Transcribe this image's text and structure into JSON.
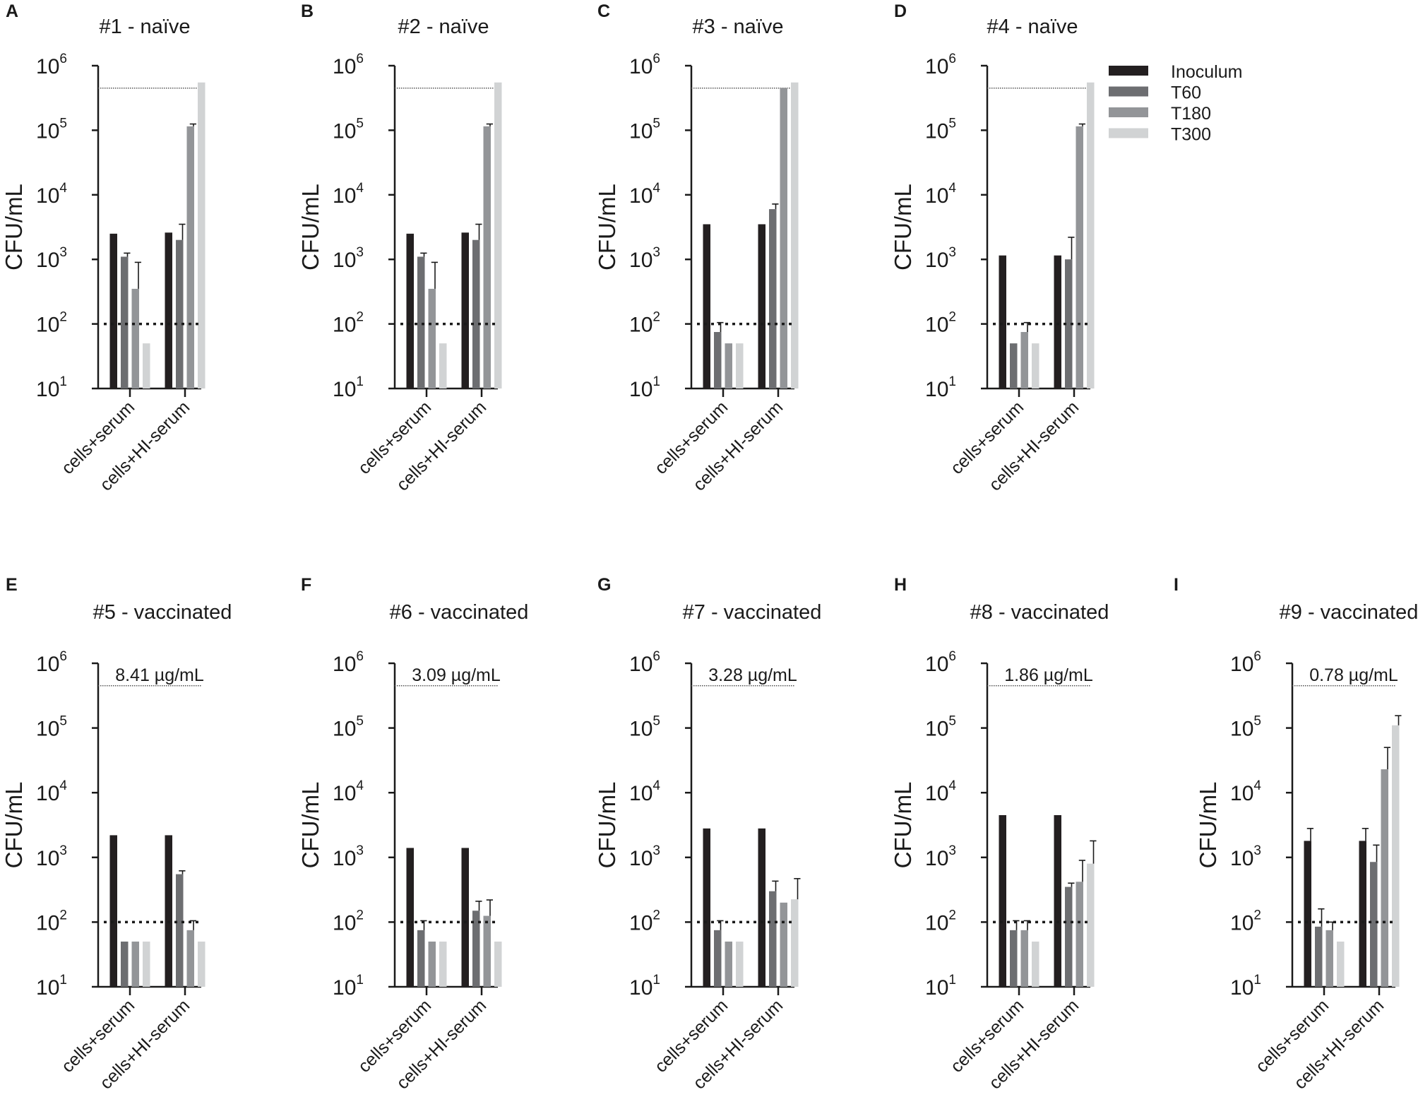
{
  "legend": {
    "entries": [
      "Inoculum",
      "T60",
      "T180",
      "T300"
    ],
    "colors": [
      "#231f20",
      "#6d6e71",
      "#939598",
      "#d1d3d4"
    ]
  },
  "chart_data": [
    {
      "panel": "A",
      "title": "#1 - naïve",
      "type": "bar",
      "scale": "log",
      "ylabel": "CFU/mL",
      "ylim": [
        10,
        1000000
      ],
      "ytick_labels": [
        "10",
        "10",
        "10",
        "10",
        "10",
        "10"
      ],
      "ytick_exponents": [
        "1",
        "2",
        "3",
        "4",
        "5",
        "6"
      ],
      "categories": [
        "cells+serum",
        "cells+HI-serum"
      ],
      "series": [
        {
          "name": "Inoculum",
          "values": [
            2500,
            2600
          ],
          "errors": [
            null,
            null
          ]
        },
        {
          "name": "T60",
          "values": [
            1100,
            2000
          ],
          "errors": [
            1250,
            3500
          ]
        },
        {
          "name": "T180",
          "values": [
            350,
            115000
          ],
          "errors": [
            900,
            125000
          ]
        },
        {
          "name": "T300",
          "values": [
            50,
            550000
          ],
          "errors": [
            null,
            null
          ]
        }
      ],
      "reference_lines": {
        "dotted_top": 450000,
        "detection_limit": 100
      },
      "annotation": ""
    },
    {
      "panel": "B",
      "title": "#2 - naïve",
      "type": "bar",
      "scale": "log",
      "ylabel": "CFU/mL",
      "ylim": [
        10,
        1000000
      ],
      "ytick_labels": [
        "10",
        "10",
        "10",
        "10",
        "10",
        "10"
      ],
      "ytick_exponents": [
        "1",
        "2",
        "3",
        "4",
        "5",
        "6"
      ],
      "categories": [
        "cells+serum",
        "cells+HI-serum"
      ],
      "series": [
        {
          "name": "Inoculum",
          "values": [
            2500,
            2600
          ],
          "errors": [
            null,
            null
          ]
        },
        {
          "name": "T60",
          "values": [
            1100,
            2000
          ],
          "errors": [
            1250,
            3500
          ]
        },
        {
          "name": "T180",
          "values": [
            350,
            115000
          ],
          "errors": [
            900,
            125000
          ]
        },
        {
          "name": "T300",
          "values": [
            50,
            550000
          ],
          "errors": [
            null,
            null
          ]
        }
      ],
      "reference_lines": {
        "dotted_top": 450000,
        "detection_limit": 100
      },
      "annotation": ""
    },
    {
      "panel": "C",
      "title": "#3 - naïve",
      "type": "bar",
      "scale": "log",
      "ylabel": "CFU/mL",
      "ylim": [
        10,
        1000000
      ],
      "ytick_labels": [
        "10",
        "10",
        "10",
        "10",
        "10",
        "10"
      ],
      "ytick_exponents": [
        "1",
        "2",
        "3",
        "4",
        "5",
        "6"
      ],
      "categories": [
        "cells+serum",
        "cells+HI-serum"
      ],
      "series": [
        {
          "name": "Inoculum",
          "values": [
            3500,
            3500
          ],
          "errors": [
            null,
            null
          ]
        },
        {
          "name": "T60",
          "values": [
            75,
            6000
          ],
          "errors": [
            105,
            7200
          ]
        },
        {
          "name": "T180",
          "values": [
            50,
            450000
          ],
          "errors": [
            null,
            null
          ]
        },
        {
          "name": "T300",
          "values": [
            50,
            550000
          ],
          "errors": [
            null,
            null
          ]
        }
      ],
      "reference_lines": {
        "dotted_top": 450000,
        "detection_limit": 100
      },
      "annotation": ""
    },
    {
      "panel": "D",
      "title": "#4 - naïve",
      "type": "bar",
      "scale": "log",
      "ylabel": "CFU/mL",
      "ylim": [
        10,
        1000000
      ],
      "ytick_labels": [
        "10",
        "10",
        "10",
        "10",
        "10",
        "10"
      ],
      "ytick_exponents": [
        "1",
        "2",
        "3",
        "4",
        "5",
        "6"
      ],
      "categories": [
        "cells+serum",
        "cells+HI-serum"
      ],
      "series": [
        {
          "name": "Inoculum",
          "values": [
            1150,
            1150
          ],
          "errors": [
            null,
            null
          ]
        },
        {
          "name": "T60",
          "values": [
            50,
            1000
          ],
          "errors": [
            null,
            2200
          ]
        },
        {
          "name": "T180",
          "values": [
            75,
            115000
          ],
          "errors": [
            105,
            125000
          ]
        },
        {
          "name": "T300",
          "values": [
            50,
            550000
          ],
          "errors": [
            null,
            null
          ]
        }
      ],
      "reference_lines": {
        "dotted_top": 450000,
        "detection_limit": 100
      },
      "annotation": ""
    },
    {
      "panel": "E",
      "title": "#5 - vaccinated",
      "type": "bar",
      "scale": "log",
      "ylabel": "CFU/mL",
      "ylim": [
        10,
        1000000
      ],
      "ytick_labels": [
        "10",
        "10",
        "10",
        "10",
        "10",
        "10"
      ],
      "ytick_exponents": [
        "1",
        "2",
        "3",
        "4",
        "5",
        "6"
      ],
      "categories": [
        "cells+serum",
        "cells+HI-serum"
      ],
      "series": [
        {
          "name": "Inoculum",
          "values": [
            2200,
            2200
          ],
          "errors": [
            null,
            null
          ]
        },
        {
          "name": "T60",
          "values": [
            50,
            550
          ],
          "errors": [
            null,
            620
          ]
        },
        {
          "name": "T180",
          "values": [
            50,
            75
          ],
          "errors": [
            null,
            105
          ]
        },
        {
          "name": "T300",
          "values": [
            50,
            50
          ],
          "errors": [
            null,
            null
          ]
        }
      ],
      "reference_lines": {
        "dotted_top": 450000,
        "detection_limit": 100
      },
      "annotation": "8.41 µg/mL"
    },
    {
      "panel": "F",
      "title": "#6 - vaccinated",
      "type": "bar",
      "scale": "log",
      "ylabel": "CFU/mL",
      "ylim": [
        10,
        1000000
      ],
      "ytick_labels": [
        "10",
        "10",
        "10",
        "10",
        "10",
        "10"
      ],
      "ytick_exponents": [
        "1",
        "2",
        "3",
        "4",
        "5",
        "6"
      ],
      "categories": [
        "cells+serum",
        "cells+HI-serum"
      ],
      "series": [
        {
          "name": "Inoculum",
          "values": [
            1400,
            1400
          ],
          "errors": [
            null,
            null
          ]
        },
        {
          "name": "T60",
          "values": [
            75,
            150
          ],
          "errors": [
            105,
            210
          ]
        },
        {
          "name": "T180",
          "values": [
            50,
            125
          ],
          "errors": [
            null,
            220
          ]
        },
        {
          "name": "T300",
          "values": [
            50,
            50
          ],
          "errors": [
            null,
            null
          ]
        }
      ],
      "reference_lines": {
        "dotted_top": 450000,
        "detection_limit": 100
      },
      "annotation": "3.09 µg/mL"
    },
    {
      "panel": "G",
      "title": "#7 - vaccinated",
      "type": "bar",
      "scale": "log",
      "ylabel": "CFU/mL",
      "ylim": [
        10,
        1000000
      ],
      "ytick_labels": [
        "10",
        "10",
        "10",
        "10",
        "10",
        "10"
      ],
      "ytick_exponents": [
        "1",
        "2",
        "3",
        "4",
        "5",
        "6"
      ],
      "categories": [
        "cells+serum",
        "cells+HI-serum"
      ],
      "series": [
        {
          "name": "Inoculum",
          "values": [
            2800,
            2800
          ],
          "errors": [
            null,
            null
          ]
        },
        {
          "name": "T60",
          "values": [
            75,
            300
          ],
          "errors": [
            105,
            430
          ]
        },
        {
          "name": "T180",
          "values": [
            50,
            200
          ],
          "errors": [
            null,
            null
          ]
        },
        {
          "name": "T300",
          "values": [
            50,
            225
          ],
          "errors": [
            null,
            470
          ]
        }
      ],
      "reference_lines": {
        "dotted_top": 450000,
        "detection_limit": 100
      },
      "annotation": "3.28 µg/mL"
    },
    {
      "panel": "H",
      "title": "#8 - vaccinated",
      "type": "bar",
      "scale": "log",
      "ylabel": "CFU/mL",
      "ylim": [
        10,
        1000000
      ],
      "ytick_labels": [
        "10",
        "10",
        "10",
        "10",
        "10",
        "10"
      ],
      "ytick_exponents": [
        "1",
        "2",
        "3",
        "4",
        "5",
        "6"
      ],
      "categories": [
        "cells+serum",
        "cells+HI-serum"
      ],
      "series": [
        {
          "name": "Inoculum",
          "values": [
            4500,
            4500
          ],
          "errors": [
            null,
            null
          ]
        },
        {
          "name": "T60",
          "values": [
            75,
            350
          ],
          "errors": [
            105,
            400
          ]
        },
        {
          "name": "T180",
          "values": [
            75,
            420
          ],
          "errors": [
            105,
            900
          ]
        },
        {
          "name": "T300",
          "values": [
            50,
            800
          ],
          "errors": [
            null,
            1800
          ]
        }
      ],
      "reference_lines": {
        "dotted_top": 450000,
        "detection_limit": 100
      },
      "annotation": "1.86 µg/mL"
    },
    {
      "panel": "I",
      "title": "#9 - vaccinated",
      "type": "bar",
      "scale": "log",
      "ylabel": "CFU/mL",
      "ylim": [
        10,
        1000000
      ],
      "ytick_labels": [
        "10",
        "10",
        "10",
        "10",
        "10",
        "10"
      ],
      "ytick_exponents": [
        "1",
        "2",
        "3",
        "4",
        "5",
        "6"
      ],
      "categories": [
        "cells+serum",
        "cells+HI-serum"
      ],
      "series": [
        {
          "name": "Inoculum",
          "values": [
            1800,
            1800
          ],
          "errors": [
            2800,
            2800
          ]
        },
        {
          "name": "T60",
          "values": [
            85,
            850
          ],
          "errors": [
            160,
            1550
          ]
        },
        {
          "name": "T180",
          "values": [
            75,
            23000
          ],
          "errors": [
            100,
            50000
          ]
        },
        {
          "name": "T300",
          "values": [
            50,
            110000
          ],
          "errors": [
            null,
            155000
          ]
        }
      ],
      "reference_lines": {
        "dotted_top": 450000,
        "detection_limit": 100
      },
      "annotation": "0.78 µg/mL"
    }
  ]
}
